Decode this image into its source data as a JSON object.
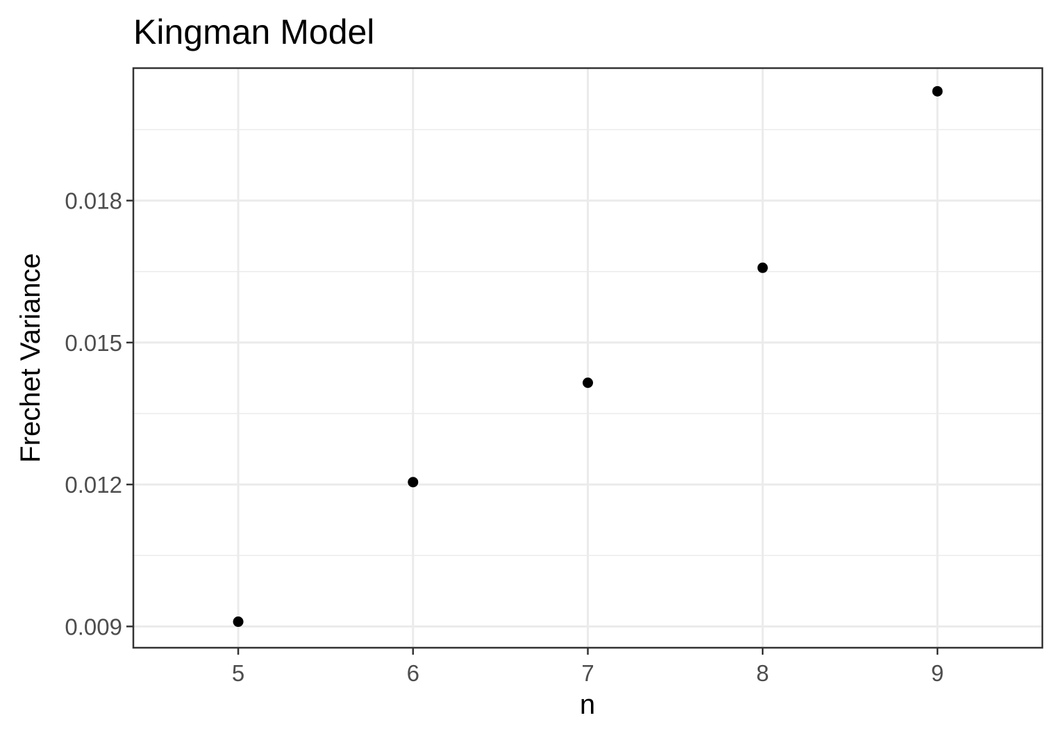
{
  "chart_data": {
    "type": "scatter",
    "title": "Kingman Model",
    "xlabel": "n",
    "ylabel": "Frechet Variance",
    "x": [
      5,
      6,
      7,
      8,
      9
    ],
    "y": [
      0.0091,
      0.01205,
      0.01415,
      0.01658,
      0.02031
    ],
    "xlim": [
      4.4,
      9.6
    ],
    "ylim": [
      0.00855,
      0.0208
    ],
    "x_ticks": [
      5,
      6,
      7,
      8,
      9
    ],
    "x_tick_labels": [
      "5",
      "6",
      "7",
      "8",
      "9"
    ],
    "y_ticks": [
      0.009,
      0.012,
      0.015,
      0.018
    ],
    "y_tick_labels": [
      "0.009",
      "0.012",
      "0.015",
      "0.018"
    ],
    "y_minor_ticks": [
      0.0105,
      0.0135,
      0.0165,
      0.0195
    ],
    "grid": true,
    "legend": "none",
    "point_color": "#000000"
  }
}
